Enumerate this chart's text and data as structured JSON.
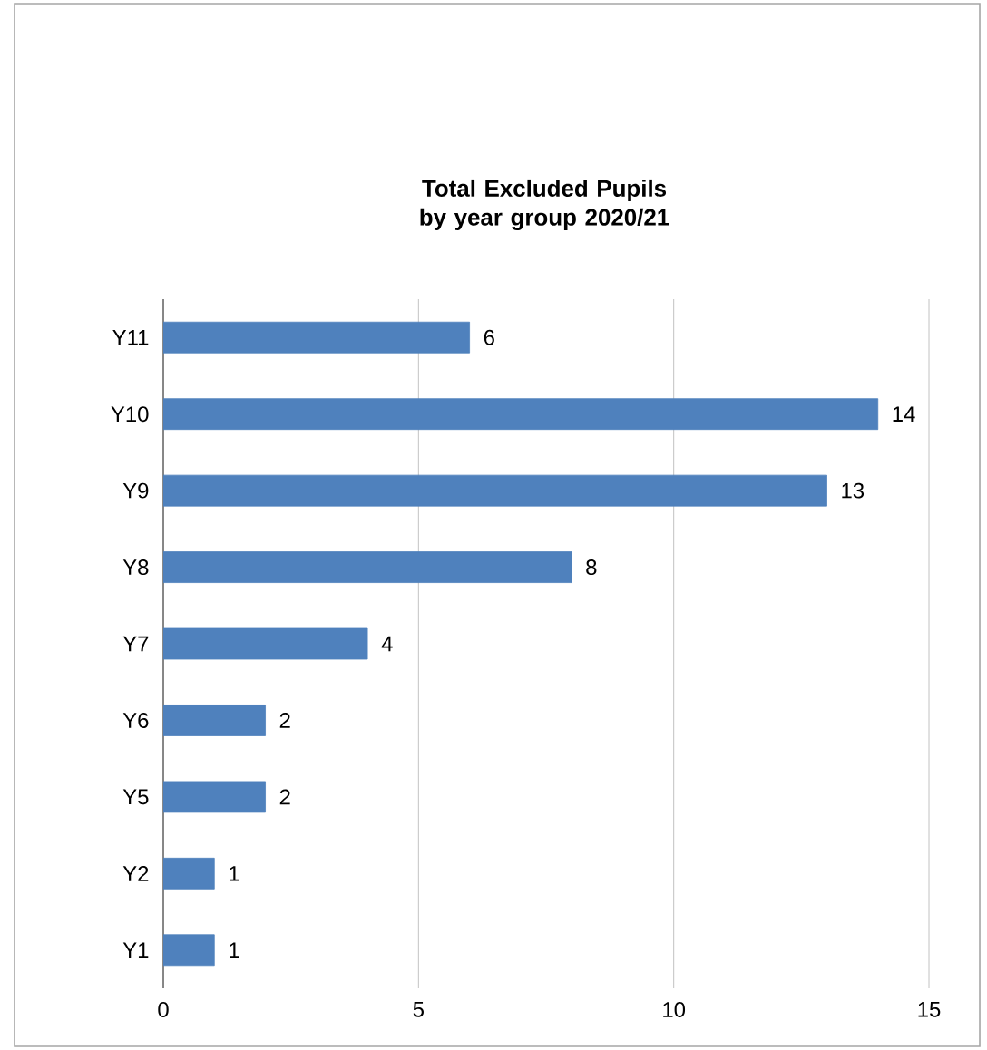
{
  "chart_data": {
    "type": "bar",
    "orientation": "horizontal",
    "title": "Total Excluded Pupils by year group 2020/21",
    "categories": [
      "Y11",
      "Y10",
      "Y9",
      "Y8",
      "Y7",
      "Y6",
      "Y5",
      "Y2",
      "Y1"
    ],
    "values": [
      6,
      14,
      13,
      8,
      4,
      2,
      2,
      1,
      1
    ],
    "color": "#4f81bd",
    "xlim": [
      0,
      15
    ],
    "xticks": [
      0,
      5,
      10,
      15
    ],
    "grid": "x",
    "data_labels": true
  }
}
